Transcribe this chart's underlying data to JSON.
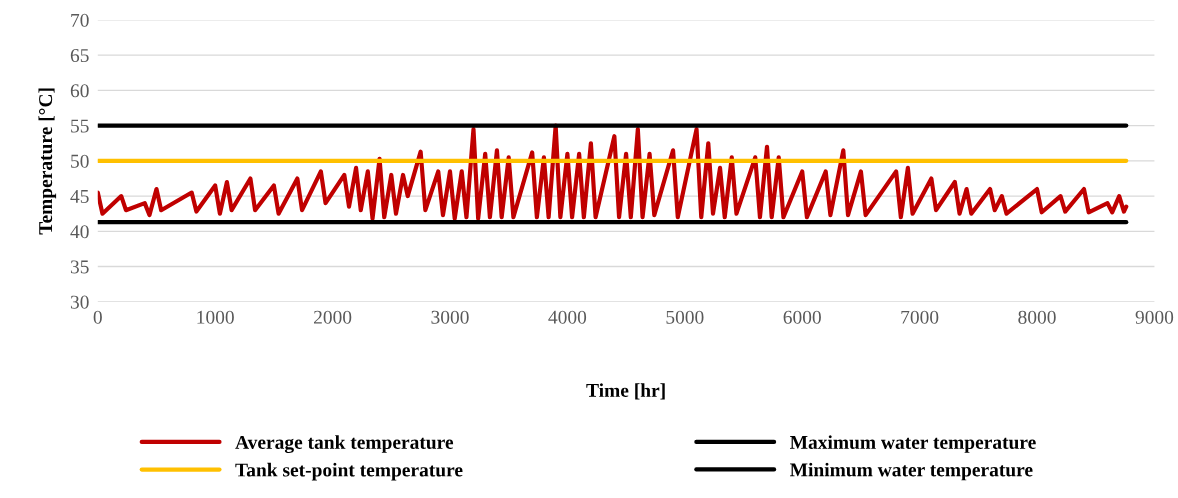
{
  "chart_data": {
    "type": "line",
    "xlabel": "Time [hr]",
    "ylabel": "Temperature [°C]",
    "xlim": [
      0,
      9000
    ],
    "xticks": [
      0,
      1000,
      2000,
      3000,
      4000,
      5000,
      6000,
      7000,
      8000,
      9000
    ],
    "ylim": [
      30,
      70
    ],
    "yticks": [
      30,
      35,
      40,
      45,
      50,
      55,
      60,
      65,
      70
    ],
    "grid": "y",
    "legend": "bottom",
    "marker": "none",
    "line_style": "solid",
    "series": [
      {
        "name": "Average tank temperature",
        "color": "#c00000",
        "x": [
          0,
          40,
          200,
          240,
          400,
          440,
          500,
          540,
          800,
          840,
          1000,
          1040,
          1100,
          1140,
          1300,
          1340,
          1500,
          1540,
          1700,
          1740,
          1900,
          1940,
          2100,
          2140,
          2200,
          2240,
          2300,
          2340,
          2400,
          2440,
          2500,
          2540,
          2600,
          2640,
          2750,
          2790,
          2900,
          2940,
          3000,
          3040,
          3100,
          3140,
          3200,
          3240,
          3300,
          3340,
          3400,
          3440,
          3500,
          3540,
          3700,
          3740,
          3800,
          3840,
          3900,
          3940,
          4000,
          4040,
          4100,
          4140,
          4200,
          4240,
          4400,
          4440,
          4500,
          4540,
          4600,
          4640,
          4700,
          4740,
          4900,
          4940,
          5100,
          5140,
          5200,
          5240,
          5300,
          5340,
          5400,
          5440,
          5600,
          5640,
          5700,
          5740,
          5800,
          5840,
          6000,
          6040,
          6200,
          6240,
          6350,
          6390,
          6500,
          6540,
          6800,
          6840,
          6900,
          6940,
          7100,
          7140,
          7300,
          7340,
          7400,
          7440,
          7600,
          7640,
          7700,
          7740,
          8000,
          8040,
          8200,
          8240,
          8400,
          8440,
          8600,
          8640,
          8700,
          8740,
          8760
        ],
        "values": [
          45.5,
          42.5,
          45,
          43,
          44,
          42.3,
          46,
          43,
          45.5,
          42.8,
          46.5,
          42.5,
          47,
          43,
          47.5,
          43,
          46.5,
          42.5,
          47.5,
          43,
          48.5,
          44,
          48,
          43.5,
          49,
          43,
          48.5,
          41.8,
          50.3,
          42,
          48,
          42.5,
          48,
          45,
          51.3,
          43,
          48.5,
          42.3,
          48.5,
          41.8,
          48.5,
          42,
          54.5,
          41.8,
          51,
          42,
          51.5,
          42,
          50.5,
          42,
          51.2,
          42,
          50.5,
          42,
          55,
          42,
          51,
          42,
          51,
          42,
          52.5,
          42,
          53.5,
          42,
          51,
          42,
          54.5,
          42,
          51,
          42.3,
          51.5,
          42,
          54.5,
          42,
          52.5,
          42.5,
          49,
          42,
          50.5,
          42.5,
          50.5,
          42,
          52,
          42,
          50.5,
          42,
          48.5,
          42,
          48.5,
          42.3,
          51.5,
          42.3,
          48.5,
          42.3,
          48.5,
          42,
          49,
          42.5,
          47.5,
          43,
          47,
          42.5,
          46,
          42.5,
          46,
          43,
          45,
          42.5,
          46,
          42.7,
          45,
          42.8,
          46,
          42.7,
          44,
          42.7,
          45,
          42.8,
          43.5
        ]
      },
      {
        "name": "Tank set-point temperature",
        "color": "#ffc000",
        "x": [
          0,
          8760
        ],
        "values": [
          50,
          50
        ]
      },
      {
        "name": "Maximum water temperature",
        "color": "#000000",
        "x": [
          0,
          8760
        ],
        "values": [
          55,
          55
        ]
      },
      {
        "name": "Minimum water temperature",
        "color": "#000000",
        "x": [
          0,
          8760
        ],
        "values": [
          41.3,
          41.3
        ]
      }
    ]
  }
}
